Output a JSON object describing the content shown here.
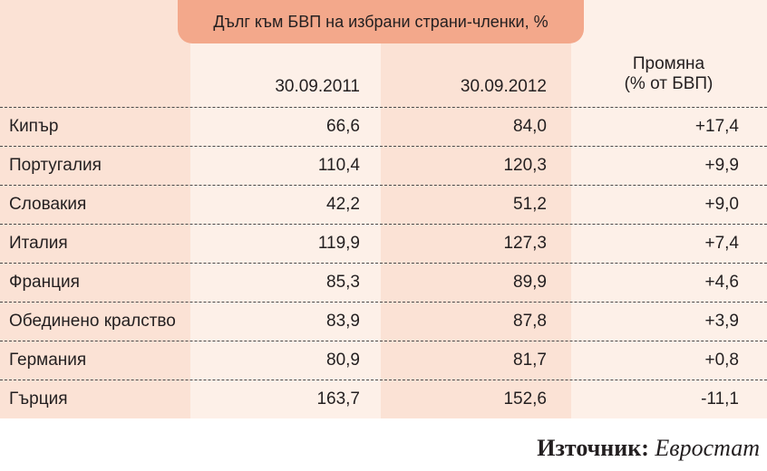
{
  "header": {
    "title": "Дълг към БВП на избрани страни-членки, %",
    "date_1": "30.09.2011",
    "date_2": "30.09.2012",
    "change": [
      "Промяна",
      "(% от БВП)"
    ]
  },
  "rows": [
    {
      "country": "Кипър",
      "values": [
        "66,6",
        "84,0",
        "+17,4"
      ]
    },
    {
      "country": "Португалия",
      "values": [
        "110,4",
        "120,3",
        "+9,9"
      ]
    },
    {
      "country": "Словакия",
      "values": [
        "42,2",
        "51,2",
        "+9,0"
      ]
    },
    {
      "country": "Италия",
      "values": [
        "119,9",
        "127,3",
        "+7,4"
      ]
    },
    {
      "country": "Франция",
      "values": [
        "85,3",
        "89,9",
        "+4,6"
      ]
    },
    {
      "country": "Обединено кралство",
      "values": [
        "83,9",
        "87,8",
        "+3,9"
      ]
    },
    {
      "country": "Германия",
      "values": [
        "80,9",
        "81,7",
        "+0,8"
      ]
    },
    {
      "country": "Гърция",
      "values": [
        "163,7",
        "152,6",
        "-11,1"
      ]
    }
  ],
  "source": {
    "label": "Източник:",
    "value": "Евростат"
  }
}
